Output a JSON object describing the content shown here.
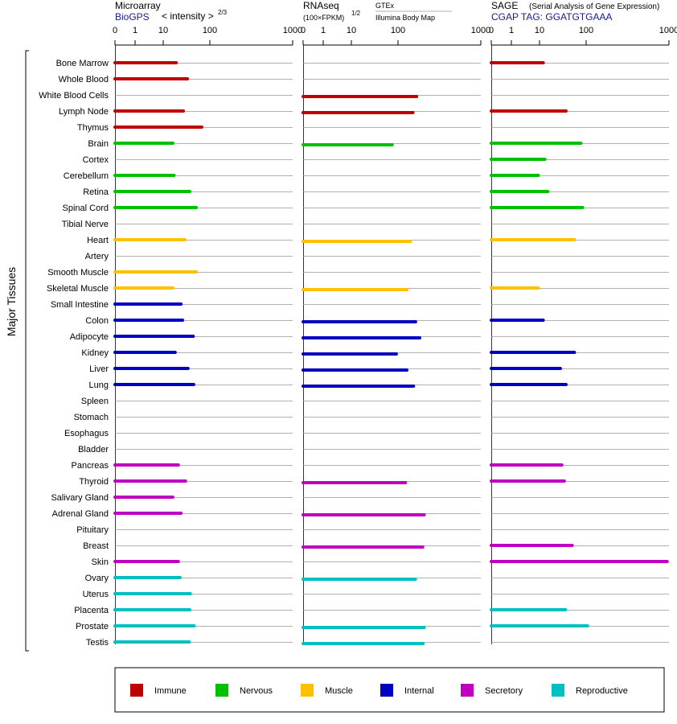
{
  "colors": {
    "immune": "#c00000",
    "nervous": "#00c000",
    "muscle": "#ffc000",
    "internal": "#0000c0",
    "secretory": "#c000c0",
    "reproductive": "#00c0c0",
    "blue_text": "#1a1a8c",
    "grid": "#999999"
  },
  "headers": {
    "panel1_title": "Microarray",
    "panel1_source": "BioGPS",
    "panel1_units": "< intensity >",
    "panel1_exponent": "2/3",
    "panel2_title": "RNAseq",
    "panel2_units": "(100×FPKM)",
    "panel2_exponent": "1/2",
    "panel2_gtex": "GTEx",
    "panel2_illumina": "Illumina Body Map",
    "panel3_title": "SAGE",
    "panel3_subtitle": "(Serial Analysis of Gene Expression)",
    "panel3_tag": "CGAP  TAG: GGATGTGAAA"
  },
  "y_group_label": "Major Tissues",
  "legend": [
    {
      "label": "Immune",
      "color_key": "immune"
    },
    {
      "label": "Nervous",
      "color_key": "nervous"
    },
    {
      "label": "Muscle",
      "color_key": "muscle"
    },
    {
      "label": "Internal",
      "color_key": "internal"
    },
    {
      "label": "Secretory",
      "color_key": "secretory"
    },
    {
      "label": "Reproductive",
      "color_key": "reproductive"
    }
  ],
  "chart_data": {
    "type": "bar",
    "scale_note": "axis tick labels 0, 1, 10, 100, 1000",
    "ticks": [
      "0",
      "1",
      "10",
      "100",
      "1000"
    ],
    "xlim": [
      0,
      1000
    ],
    "categories": [
      "Bone Marrow",
      "Whole Blood",
      "White Blood Cells",
      "Lymph Node",
      "Thymus",
      "Brain",
      "Cortex",
      "Cerebellum",
      "Retina",
      "Spinal Cord",
      "Tibial Nerve",
      "Heart",
      "Artery",
      "Smooth Muscle",
      "Skeletal Muscle",
      "Small Intestine",
      "Colon",
      "Adipocyte",
      "Kidney",
      "Liver",
      "Lung",
      "Spleen",
      "Stomach",
      "Esophagus",
      "Bladder",
      "Pancreas",
      "Thyroid",
      "Salivary Gland",
      "Adrenal Gland",
      "Pituitary",
      "Breast",
      "Skin",
      "Ovary",
      "Uterus",
      "Placenta",
      "Prostate",
      "Testis"
    ],
    "groups": [
      "immune",
      "immune",
      "immune",
      "immune",
      "immune",
      "nervous",
      "nervous",
      "nervous",
      "nervous",
      "nervous",
      "nervous",
      "muscle",
      "muscle",
      "muscle",
      "muscle",
      "internal",
      "internal",
      "internal",
      "internal",
      "internal",
      "internal",
      "internal",
      "internal",
      "internal",
      "internal",
      "secretory",
      "secretory",
      "secretory",
      "secretory",
      "secretory",
      "secretory",
      "secretory",
      "reproductive",
      "reproductive",
      "reproductive",
      "reproductive",
      "reproductive"
    ],
    "series": [
      {
        "name": "Microarray",
        "values": [
          19,
          33,
          null,
          27,
          67,
          16,
          null,
          17,
          37,
          51,
          null,
          29,
          null,
          51,
          16,
          24,
          26,
          44,
          18,
          34,
          45,
          null,
          null,
          null,
          null,
          21,
          30,
          16,
          24,
          null,
          null,
          21,
          23,
          38,
          37,
          46,
          36
        ]
      },
      {
        "name": "RNAseq GTEx",
        "values": [
          null,
          null,
          168,
          null,
          null,
          null,
          null,
          null,
          null,
          null,
          null,
          null,
          null,
          null,
          null,
          null,
          null,
          null,
          null,
          null,
          null,
          null,
          null,
          null,
          null,
          null,
          null,
          null,
          null,
          null,
          null,
          null,
          null,
          null,
          null,
          null,
          null
        ]
      },
      {
        "name": "RNAseq",
        "values": [
          null,
          null,
          151,
          151,
          null,
          75,
          null,
          null,
          null,
          null,
          null,
          141,
          null,
          null,
          128,
          null,
          163,
          183,
          92,
          128,
          154,
          null,
          null,
          null,
          null,
          null,
          123,
          null,
          207,
          null,
          199,
          null,
          162,
          null,
          null,
          207,
          201
        ]
      },
      {
        "name": "SAGE",
        "values": [
          12,
          null,
          null,
          37,
          null,
          77,
          13,
          9,
          15,
          84,
          null,
          56,
          null,
          null,
          9,
          null,
          12,
          null,
          56,
          28,
          37,
          null,
          null,
          null,
          null,
          30,
          34,
          null,
          null,
          null,
          50,
          950,
          null,
          null,
          36,
          104,
          null
        ]
      }
    ]
  }
}
